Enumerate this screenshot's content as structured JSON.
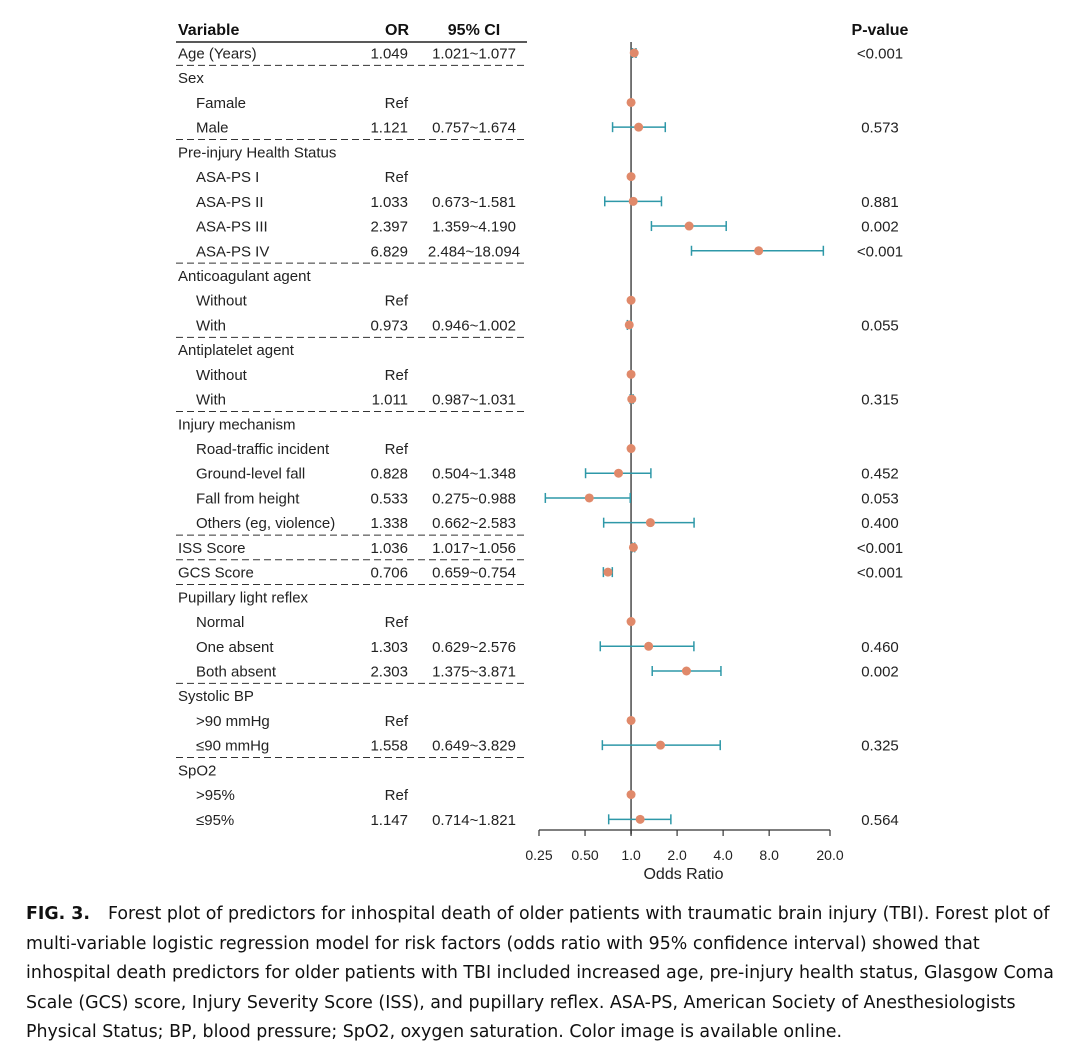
{
  "chart_data": {
    "type": "forest",
    "headers": {
      "variable": "Variable",
      "or": "OR",
      "ci": "95% CI",
      "p": "P-value"
    },
    "xlabel": "Odds Ratio",
    "xscale": "log",
    "xlim": [
      0.25,
      20.0
    ],
    "ticks": [
      {
        "v": 0.25,
        "label": "0.25"
      },
      {
        "v": 0.5,
        "label": "0.50"
      },
      {
        "v": 1.0,
        "label": "1.0"
      },
      {
        "v": 2.0,
        "label": "2.0"
      },
      {
        "v": 4.0,
        "label": "4.0"
      },
      {
        "v": 8.0,
        "label": "8.0"
      },
      {
        "v": 20.0,
        "label": "20.0"
      }
    ],
    "reference_line": 1.0,
    "colors": {
      "point": "#E0896A",
      "ci": "#2E98A8",
      "ref_line": "#555555",
      "text": "#222222"
    },
    "rows": [
      {
        "label": "Age (Years)",
        "level": 0,
        "or": "1.049",
        "ci": "1.021~1.077",
        "p": "<0.001",
        "est": 1.049,
        "lo": 1.021,
        "hi": 1.077,
        "sep": true
      },
      {
        "label": "Sex",
        "level": 0,
        "or": "",
        "ci": "",
        "p": "",
        "est": null,
        "lo": null,
        "hi": null
      },
      {
        "label": "Famale",
        "level": 1,
        "or": "Ref",
        "ci": "",
        "p": "",
        "est": 1.0,
        "lo": null,
        "hi": null
      },
      {
        "label": "Male",
        "level": 1,
        "or": "1.121",
        "ci": "0.757~1.674",
        "p": "0.573",
        "est": 1.121,
        "lo": 0.757,
        "hi": 1.674,
        "sep": true
      },
      {
        "label": "Pre-injury Health Status",
        "level": 0,
        "or": "",
        "ci": "",
        "p": "",
        "est": null,
        "lo": null,
        "hi": null
      },
      {
        "label": "ASA-PS I",
        "level": 1,
        "or": "Ref",
        "ci": "",
        "p": "",
        "est": 1.0,
        "lo": null,
        "hi": null
      },
      {
        "label": "ASA-PS II",
        "level": 1,
        "or": "1.033",
        "ci": "0.673~1.581",
        "p": "0.881",
        "est": 1.033,
        "lo": 0.673,
        "hi": 1.581
      },
      {
        "label": "ASA-PS III",
        "level": 1,
        "or": "2.397",
        "ci": "1.359~4.190",
        "p": "0.002",
        "est": 2.397,
        "lo": 1.359,
        "hi": 4.19
      },
      {
        "label": "ASA-PS IV",
        "level": 1,
        "or": "6.829",
        "ci": "2.484~18.094",
        "p": "<0.001",
        "est": 6.829,
        "lo": 2.484,
        "hi": 18.094,
        "sep": true
      },
      {
        "label": "Anticoagulant agent",
        "level": 0,
        "or": "",
        "ci": "",
        "p": "",
        "est": null,
        "lo": null,
        "hi": null
      },
      {
        "label": "Without",
        "level": 1,
        "or": "Ref",
        "ci": "",
        "p": "",
        "est": 1.0,
        "lo": null,
        "hi": null
      },
      {
        "label": "With",
        "level": 1,
        "or": "0.973",
        "ci": "0.946~1.002",
        "p": "0.055",
        "est": 0.973,
        "lo": 0.946,
        "hi": 1.002,
        "sep": true
      },
      {
        "label": "Antiplatelet agent",
        "level": 0,
        "or": "",
        "ci": "",
        "p": "",
        "est": null,
        "lo": null,
        "hi": null
      },
      {
        "label": "Without",
        "level": 1,
        "or": "Ref",
        "ci": "",
        "p": "",
        "est": 1.0,
        "lo": null,
        "hi": null
      },
      {
        "label": "With",
        "level": 1,
        "or": "1.011",
        "ci": "0.987~1.031",
        "p": "0.315",
        "est": 1.011,
        "lo": 0.987,
        "hi": 1.031,
        "sep": true
      },
      {
        "label": "Injury mechanism",
        "level": 0,
        "or": "",
        "ci": "",
        "p": "",
        "est": null,
        "lo": null,
        "hi": null
      },
      {
        "label": "Road-traffic incident",
        "level": 1,
        "or": "Ref",
        "ci": "",
        "p": "",
        "est": 1.0,
        "lo": null,
        "hi": null
      },
      {
        "label": "Ground-level fall",
        "level": 1,
        "or": "0.828",
        "ci": "0.504~1.348",
        "p": "0.452",
        "est": 0.828,
        "lo": 0.504,
        "hi": 1.348
      },
      {
        "label": "Fall from height",
        "level": 1,
        "or": "0.533",
        "ci": "0.275~0.988",
        "p": "0.053",
        "est": 0.533,
        "lo": 0.275,
        "hi": 0.988
      },
      {
        "label": "Others (eg, violence)",
        "level": 1,
        "or": "1.338",
        "ci": "0.662~2.583",
        "p": "0.400",
        "est": 1.338,
        "lo": 0.662,
        "hi": 2.583,
        "sep": true
      },
      {
        "label": "ISS Score",
        "level": 0,
        "or": "1.036",
        "ci": "1.017~1.056",
        "p": "<0.001",
        "est": 1.036,
        "lo": 1.017,
        "hi": 1.056,
        "sep": true
      },
      {
        "label": "GCS Score",
        "level": 0,
        "or": "0.706",
        "ci": "0.659~0.754",
        "p": "<0.001",
        "est": 0.706,
        "lo": 0.659,
        "hi": 0.754,
        "sep": true
      },
      {
        "label": "Pupillary light reflex",
        "level": 0,
        "or": "",
        "ci": "",
        "p": "",
        "est": null,
        "lo": null,
        "hi": null
      },
      {
        "label": "Normal",
        "level": 1,
        "or": "Ref",
        "ci": "",
        "p": "",
        "est": 1.0,
        "lo": null,
        "hi": null
      },
      {
        "label": "One absent",
        "level": 1,
        "or": "1.303",
        "ci": "0.629~2.576",
        "p": "0.460",
        "est": 1.303,
        "lo": 0.629,
        "hi": 2.576
      },
      {
        "label": "Both absent",
        "level": 1,
        "or": "2.303",
        "ci": "1.375~3.871",
        "p": "0.002",
        "est": 2.303,
        "lo": 1.375,
        "hi": 3.871,
        "sep": true
      },
      {
        "label": "Systolic BP",
        "level": 0,
        "or": "",
        "ci": "",
        "p": "",
        "est": null,
        "lo": null,
        "hi": null
      },
      {
        "label": ">90 mmHg",
        "level": 1,
        "or": "Ref",
        "ci": "",
        "p": "",
        "est": 1.0,
        "lo": null,
        "hi": null
      },
      {
        "label": "≤90 mmHg",
        "level": 1,
        "or": "1.558",
        "ci": "0.649~3.829",
        "p": "0.325",
        "est": 1.558,
        "lo": 0.649,
        "hi": 3.829,
        "sep": true
      },
      {
        "label": "SpO2",
        "level": 0,
        "or": "",
        "ci": "",
        "p": "",
        "est": null,
        "lo": null,
        "hi": null
      },
      {
        "label": ">95%",
        "level": 1,
        "or": "Ref",
        "ci": "",
        "p": "",
        "est": 1.0,
        "lo": null,
        "hi": null
      },
      {
        "label": "≤95%",
        "level": 1,
        "or": "1.147",
        "ci": "0.714~1.821",
        "p": "0.564",
        "est": 1.147,
        "lo": 0.714,
        "hi": 1.821
      }
    ]
  },
  "caption": {
    "label": "FIG. 3.",
    "text": "Forest plot of predictors for inhospital death of older patients with traumatic brain injury (TBI). Forest plot of multi-variable logistic regression model for risk factors (odds ratio with 95% confidence interval) showed that inhospital death predictors for older patients with TBI included increased age, pre-injury health status, Glasgow Coma Scale (GCS) score, Injury Severity Score (ISS), and pupillary reflex. ASA-PS, American Society of Anesthesiologists Physical Status; BP, blood pressure; SpO2, oxygen saturation. Color image is available online."
  }
}
